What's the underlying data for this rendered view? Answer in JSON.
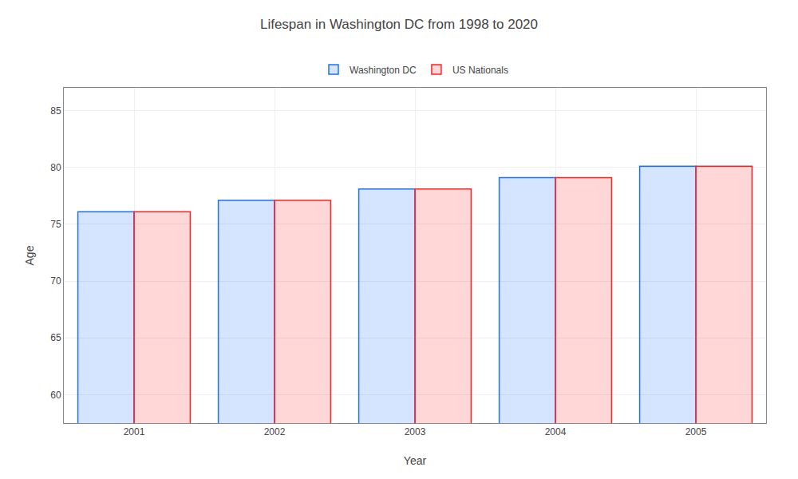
{
  "chart_data": {
    "type": "bar",
    "title": "Lifespan in Washington DC from 1998 to 2020",
    "xlabel": "Year",
    "ylabel": "Age",
    "categories": [
      2001,
      2002,
      2003,
      2004,
      2005
    ],
    "series": [
      {
        "name": "Washington DC",
        "color": "#1a6fff",
        "values": [
          76.1,
          77.1,
          78.1,
          79.1,
          80.1
        ]
      },
      {
        "name": "US Nationals",
        "color": "#ff2222",
        "values": [
          76.1,
          77.1,
          78.1,
          79.1,
          80.1
        ]
      }
    ],
    "ylim": [
      57.5,
      87
    ],
    "yticks": [
      60,
      65,
      70,
      75,
      80,
      85
    ],
    "grid": true,
    "legend": "top"
  }
}
